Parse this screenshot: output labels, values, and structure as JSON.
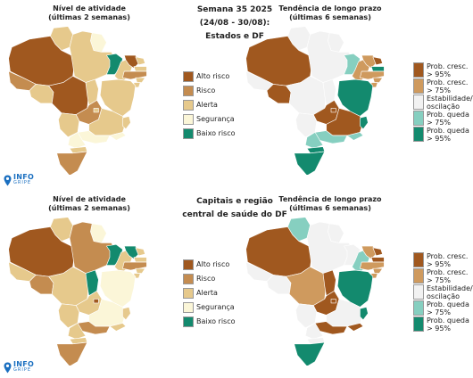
{
  "top": {
    "left_title_line1": "Nível de atividade",
    "left_title_line2": "(últimas 2 semanas)",
    "center_line1": "Semana 35 2025",
    "center_line2": "(24/08 - 30/08):",
    "center_line3": "Estados e DF",
    "right_title_line1": "Tendência de longo prazo",
    "right_title_line2": "(últimas 6 semanas)"
  },
  "bottom": {
    "left_title_line1": "Nível de atividade",
    "left_title_line2": "(últimas 2 semanas)",
    "center_line1": "Capitais e região",
    "center_line2": "central de saúde do DF",
    "right_title_line1": "Tendência de longo prazo",
    "right_title_line2": "(últimas 6 semanas)"
  },
  "activity_legend": [
    {
      "label": "Alto risco",
      "color": "#a0581f"
    },
    {
      "label": "Risco",
      "color": "#c48c50"
    },
    {
      "label": "Alerta",
      "color": "#e6c98c"
    },
    {
      "label": "Segurança",
      "color": "#fbf6d8"
    },
    {
      "label": "Baixo risco",
      "color": "#138a6e"
    }
  ],
  "trend_legend": [
    {
      "line1": "Prob. cresc.",
      "line2": "> 95%",
      "color": "#a0581f"
    },
    {
      "line1": "Prob. cresc.",
      "line2": "> 75%",
      "color": "#cf9a5e"
    },
    {
      "line1": "Estabilidade/",
      "line2": "oscilação",
      "color": "#f2f2f2"
    },
    {
      "line1": "Prob. queda",
      "line2": "> 75%",
      "color": "#86cfc0"
    },
    {
      "line1": "Prob. queda",
      "line2": "> 95%",
      "color": "#138a6e"
    }
  ],
  "logo": {
    "top": "INFO",
    "bottom": "GRIPE",
    "icon": "map-pin-icon"
  },
  "colors": {
    "alto": "#a0581f",
    "risco": "#c48c50",
    "alerta": "#e6c98c",
    "seguranca": "#fbf6d8",
    "baixo": "#138a6e",
    "t_up95": "#a0581f",
    "t_up75": "#cf9a5e",
    "t_stable": "#f2f2f2",
    "t_down75": "#86cfc0",
    "t_down95": "#138a6e"
  },
  "maps": {
    "top_activity": {
      "AM": "alto",
      "RR": "alerta",
      "AP": "seguranca",
      "PA": "alerta",
      "AC": "risco",
      "RO": "alerta",
      "MT": "alto",
      "TO": "alerta",
      "MA": "baixo",
      "PI": "alerta",
      "CE": "alto",
      "RN": "alerta",
      "PB": "alerta",
      "PE": "risco",
      "AL": "alerta",
      "SE": "alerta",
      "BA": "alerta",
      "GO": "risco",
      "DF": "alerta",
      "MS": "alerta",
      "MG": "alerta",
      "ES": "alerta",
      "RJ": "seguranca",
      "SP": "seguranca",
      "PR": "seguranca",
      "SC": "alerta",
      "RS": "risco"
    },
    "top_trend": {
      "AM": "t_up95",
      "RR": "t_stable",
      "AP": "t_stable",
      "PA": "t_stable",
      "AC": "t_stable",
      "RO": "t_up95",
      "MT": "t_stable",
      "TO": "t_stable",
      "MA": "t_down75",
      "PI": "t_up75",
      "CE": "t_up75",
      "RN": "t_up95",
      "PB": "t_down95",
      "PE": "t_up75",
      "AL": "t_up75",
      "SE": "t_up75",
      "BA": "t_down95",
      "GO": "t_up95",
      "DF": "t_up95",
      "MS": "t_stable",
      "MG": "t_up95",
      "ES": "t_down95",
      "RJ": "t_down75",
      "SP": "t_down75",
      "PR": "t_down75",
      "SC": "t_down95",
      "RS": "t_down95"
    },
    "bottom_activity": {
      "AM": "alto",
      "RR": "alerta",
      "AP": "seguranca",
      "PA": "risco",
      "AC": "alerta",
      "RO": "risco",
      "MT": "alerta",
      "TO": "baixo",
      "MA": "baixo",
      "PI": "alerta",
      "CE": "baixo",
      "RN": "alerta",
      "PB": "alerta",
      "PE": "risco",
      "AL": "alerta",
      "SE": "alerta",
      "BA": "seguranca",
      "GO": "alerta",
      "DF": "alto",
      "MS": "alerta",
      "MG": "seguranca",
      "ES": "alerta",
      "RJ": "alerta",
      "SP": "risco",
      "PR": "alerta",
      "SC": "alerta",
      "RS": "risco"
    },
    "bottom_trend": {
      "AM": "t_up95",
      "RR": "t_down75",
      "AP": "t_stable",
      "PA": "t_stable",
      "AC": "t_stable",
      "RO": "t_stable",
      "MT": "t_up75",
      "TO": "t_up95",
      "MA": "t_stable",
      "PI": "t_down75",
      "CE": "t_up75",
      "RN": "t_up95",
      "PB": "t_up95",
      "PE": "t_up75",
      "AL": "t_up75",
      "SE": "t_up75",
      "BA": "t_down95",
      "GO": "t_up95",
      "DF": "t_up95",
      "MS": "t_stable",
      "MG": "t_stable",
      "ES": "t_down95",
      "RJ": "t_up95",
      "SP": "t_up95",
      "PR": "t_stable",
      "SC": "t_stable",
      "RS": "t_down95"
    }
  }
}
